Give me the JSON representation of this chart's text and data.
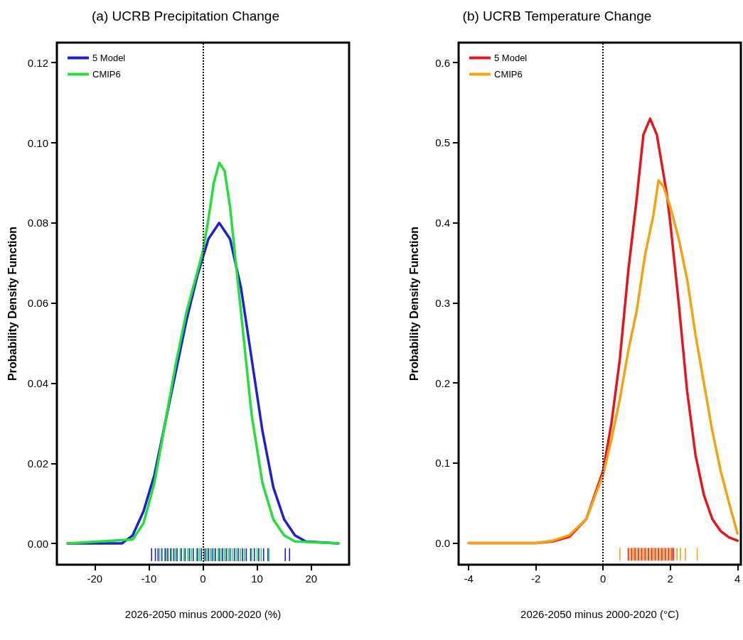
{
  "chart_data": [
    {
      "type": "line",
      "title": "(a) UCRB Precipitation Change",
      "xlabel": "2026-2050 minus 2000-2020 (%)",
      "ylabel": "Probability Density Function",
      "xlim": [
        -27,
        27
      ],
      "xticks": [
        -20,
        -10,
        0,
        10,
        20
      ],
      "ylim": [
        -0.0053,
        0.125
      ],
      "yticks": [
        {
          "value": 0,
          "label": "0.00"
        },
        {
          "value": 0.02,
          "label": "0.02"
        },
        {
          "value": 0.04,
          "label": "0.04"
        },
        {
          "value": 0.06,
          "label": "0.06"
        },
        {
          "value": 0.08,
          "label": "0.08"
        },
        {
          "value": 0.1,
          "label": "0.10"
        },
        {
          "value": 0.12,
          "label": "0.12"
        }
      ],
      "legend": "top left",
      "ref_lines": [
        {
          "axis": "x",
          "value": 0,
          "color": "#000000",
          "line_style": "dotted"
        }
      ],
      "series": [
        {
          "name": "5 Model",
          "color": "#1f1fd6",
          "x": [
            -25,
            -15,
            -13,
            -11,
            -9,
            -7,
            -5,
            -3,
            -1,
            1,
            3,
            5,
            7,
            9,
            11,
            13,
            15,
            17,
            19,
            25
          ],
          "values": [
            0,
            0,
            0.002,
            0.008,
            0.017,
            0.03,
            0.043,
            0.056,
            0.067,
            0.076,
            0.08,
            0.076,
            0.064,
            0.046,
            0.028,
            0.014,
            0.006,
            0.002,
            0.0005,
            0
          ]
        },
        {
          "name": "CMIP6",
          "color": "#22e03a",
          "x": [
            -25,
            -13,
            -11,
            -9,
            -7,
            -5,
            -3,
            -1,
            0,
            1,
            2,
            3,
            4,
            5,
            7,
            9,
            11,
            13,
            15,
            17,
            25
          ],
          "values": [
            0,
            0.001,
            0.005,
            0.015,
            0.03,
            0.045,
            0.058,
            0.068,
            0.073,
            0.081,
            0.09,
            0.095,
            0.093,
            0.084,
            0.058,
            0.032,
            0.015,
            0.006,
            0.002,
            0.0005,
            0
          ]
        },
        {
          "type": "bar",
          "color": "#1f1fd6",
          "x": [
            -9.5,
            -8.8,
            -8.3,
            -7.6,
            -7.0,
            -6.5,
            -6.0,
            -5.4,
            -4.8,
            -4.0,
            -3.3,
            -2.5,
            -1.8,
            -1.0,
            -0.3,
            0.4,
            1.0,
            1.7,
            2.3,
            3.0,
            3.6,
            4.3,
            5.0,
            5.8,
            6.5,
            7.3,
            8.0,
            8.8,
            9.5,
            10.3,
            11.2,
            12.0,
            15.2,
            16.0
          ],
          "base": [
            -0.0044,
            -0.0044,
            -0.0044,
            -0.0044,
            -0.0044,
            -0.0044,
            -0.0044,
            -0.0044,
            -0.0044,
            -0.0044,
            -0.0044,
            -0.0044,
            -0.0044,
            -0.0044,
            -0.0044,
            -0.0044,
            -0.0044,
            -0.0044,
            -0.0044,
            -0.0044,
            -0.0044,
            -0.0044,
            -0.0044,
            -0.0044,
            -0.0044,
            -0.0044,
            -0.0044,
            -0.0044,
            -0.0044,
            -0.0044,
            -0.0044,
            -0.0044,
            -0.0044,
            -0.0044
          ],
          "values": [
            0.0032,
            0.0032,
            0.0032,
            0.0032,
            0.0032,
            0.0032,
            0.0032,
            0.0032,
            0.0032,
            0.0032,
            0.0032,
            0.0032,
            0.0032,
            0.0032,
            0.0032,
            0.0032,
            0.0032,
            0.0032,
            0.0032,
            0.0032,
            0.0032,
            0.0032,
            0.0032,
            0.0032,
            0.0032,
            0.0032,
            0.0032,
            0.0032,
            0.0032,
            0.0032,
            0.0032,
            0.0032,
            0.0032,
            0.0032
          ]
        },
        {
          "type": "bar",
          "color": "#22e03a",
          "x": [
            -8,
            -6.8,
            -5.8,
            -5.1,
            -4.2,
            -3.5,
            -2.8,
            -2.15,
            -1.2,
            -0.65,
            0.2,
            0.7,
            1.35,
            2.0,
            2.8,
            3.3,
            3.95,
            4.65,
            5.4,
            6.15,
            6.9,
            7.65,
            9,
            10,
            10.75,
            12.2
          ],
          "base": [
            -0.0044,
            -0.0044,
            -0.0044,
            -0.0044,
            -0.0044,
            -0.0044,
            -0.0044,
            -0.0044,
            -0.0044,
            -0.0044,
            -0.0044,
            -0.0044,
            -0.0044,
            -0.0044,
            -0.0044,
            -0.0044,
            -0.0044,
            -0.0044,
            -0.0044,
            -0.0044,
            -0.0044,
            -0.0044,
            -0.0044,
            -0.0044,
            -0.0044,
            -0.0044
          ],
          "values": [
            0.0032,
            0.0032,
            0.0032,
            0.0032,
            0.0032,
            0.0032,
            0.0032,
            0.0032,
            0.0032,
            0.0032,
            0.0032,
            0.0032,
            0.0032,
            0.0032,
            0.0032,
            0.0032,
            0.0032,
            0.0032,
            0.0032,
            0.0032,
            0.0032,
            0.0032,
            0.0032,
            0.0032,
            0.0032,
            0.0032
          ]
        }
      ]
    },
    {
      "type": "line",
      "title": "(b) UCRB Temperature Change",
      "xlabel": "2026-2050 minus 2000-2020 (°C)",
      "ylabel": "Probability Density Function",
      "xlim": [
        -4.3,
        4.1
      ],
      "xticks": [
        -4,
        -2,
        0,
        2,
        4
      ],
      "ylim": [
        -0.027,
        0.625
      ],
      "yticks": [
        {
          "value": 0,
          "label": "0.0"
        },
        {
          "value": 0.1,
          "label": "0.1"
        },
        {
          "value": 0.2,
          "label": "0.2"
        },
        {
          "value": 0.3,
          "label": "0.3"
        },
        {
          "value": 0.4,
          "label": "0.4"
        },
        {
          "value": 0.5,
          "label": "0.5"
        },
        {
          "value": 0.6,
          "label": "0.6"
        }
      ],
      "legend": "top left",
      "ref_lines": [
        {
          "axis": "x",
          "value": 0,
          "color": "#000000",
          "line_style": "dotted"
        }
      ],
      "series": [
        {
          "name": "5 Model",
          "color": "#e8141c",
          "x": [
            -4,
            -2,
            -1.5,
            -1,
            -0.5,
            0,
            0.25,
            0.5,
            0.75,
            1,
            1.2,
            1.4,
            1.6,
            1.8,
            1.9,
            2,
            2.25,
            2.5,
            2.75,
            3,
            3.25,
            3.5,
            3.75,
            4
          ],
          "values": [
            0,
            0,
            0.002,
            0.008,
            0.03,
            0.09,
            0.15,
            0.23,
            0.34,
            0.43,
            0.51,
            0.53,
            0.51,
            0.46,
            0.435,
            0.4,
            0.3,
            0.19,
            0.11,
            0.06,
            0.03,
            0.015,
            0.007,
            0.003
          ]
        },
        {
          "name": "CMIP6",
          "color": "#f5a20f",
          "x": [
            -4,
            -2,
            -1.5,
            -1,
            -0.5,
            0,
            0.25,
            0.5,
            0.75,
            1,
            1.25,
            1.5,
            1.65,
            1.8,
            2,
            2.25,
            2.5,
            2.75,
            3,
            3.25,
            3.5,
            3.75,
            4
          ],
          "values": [
            0,
            0,
            0.003,
            0.01,
            0.03,
            0.085,
            0.13,
            0.18,
            0.24,
            0.29,
            0.36,
            0.41,
            0.453,
            0.445,
            0.42,
            0.38,
            0.33,
            0.26,
            0.2,
            0.14,
            0.09,
            0.05,
            0.012
          ]
        },
        {
          "type": "bar",
          "color": "#f5a20f",
          "x": [
            0.5,
            0.8,
            0.9,
            1.0,
            1.1,
            1.2,
            1.3,
            1.4,
            1.5,
            1.6,
            1.7,
            1.8,
            1.9,
            2.0,
            2.2,
            2.3,
            2.45,
            2.8
          ],
          "base": [
            -0.022,
            -0.022,
            -0.022,
            -0.022,
            -0.022,
            -0.022,
            -0.022,
            -0.022,
            -0.022,
            -0.022,
            -0.022,
            -0.022,
            -0.022,
            -0.022,
            -0.022,
            -0.022,
            -0.022,
            -0.022
          ],
          "values": [
            0.016,
            0.016,
            0.016,
            0.016,
            0.016,
            0.016,
            0.016,
            0.016,
            0.016,
            0.016,
            0.016,
            0.016,
            0.016,
            0.016,
            0.016,
            0.016,
            0.016,
            0.016
          ]
        },
        {
          "type": "bar",
          "color": "#e8141c",
          "x": [
            0.75,
            0.85,
            0.95,
            1.05,
            1.15,
            1.25,
            1.35,
            1.45,
            1.55,
            1.65,
            1.75,
            1.85,
            1.95,
            2.05,
            2.1
          ],
          "base": [
            -0.022,
            -0.022,
            -0.022,
            -0.022,
            -0.022,
            -0.022,
            -0.022,
            -0.022,
            -0.022,
            -0.022,
            -0.022,
            -0.022,
            -0.022,
            -0.022,
            -0.022
          ],
          "values": [
            0.016,
            0.016,
            0.016,
            0.016,
            0.016,
            0.016,
            0.016,
            0.016,
            0.016,
            0.016,
            0.016,
            0.016,
            0.016,
            0.016,
            0.016
          ]
        }
      ]
    }
  ]
}
